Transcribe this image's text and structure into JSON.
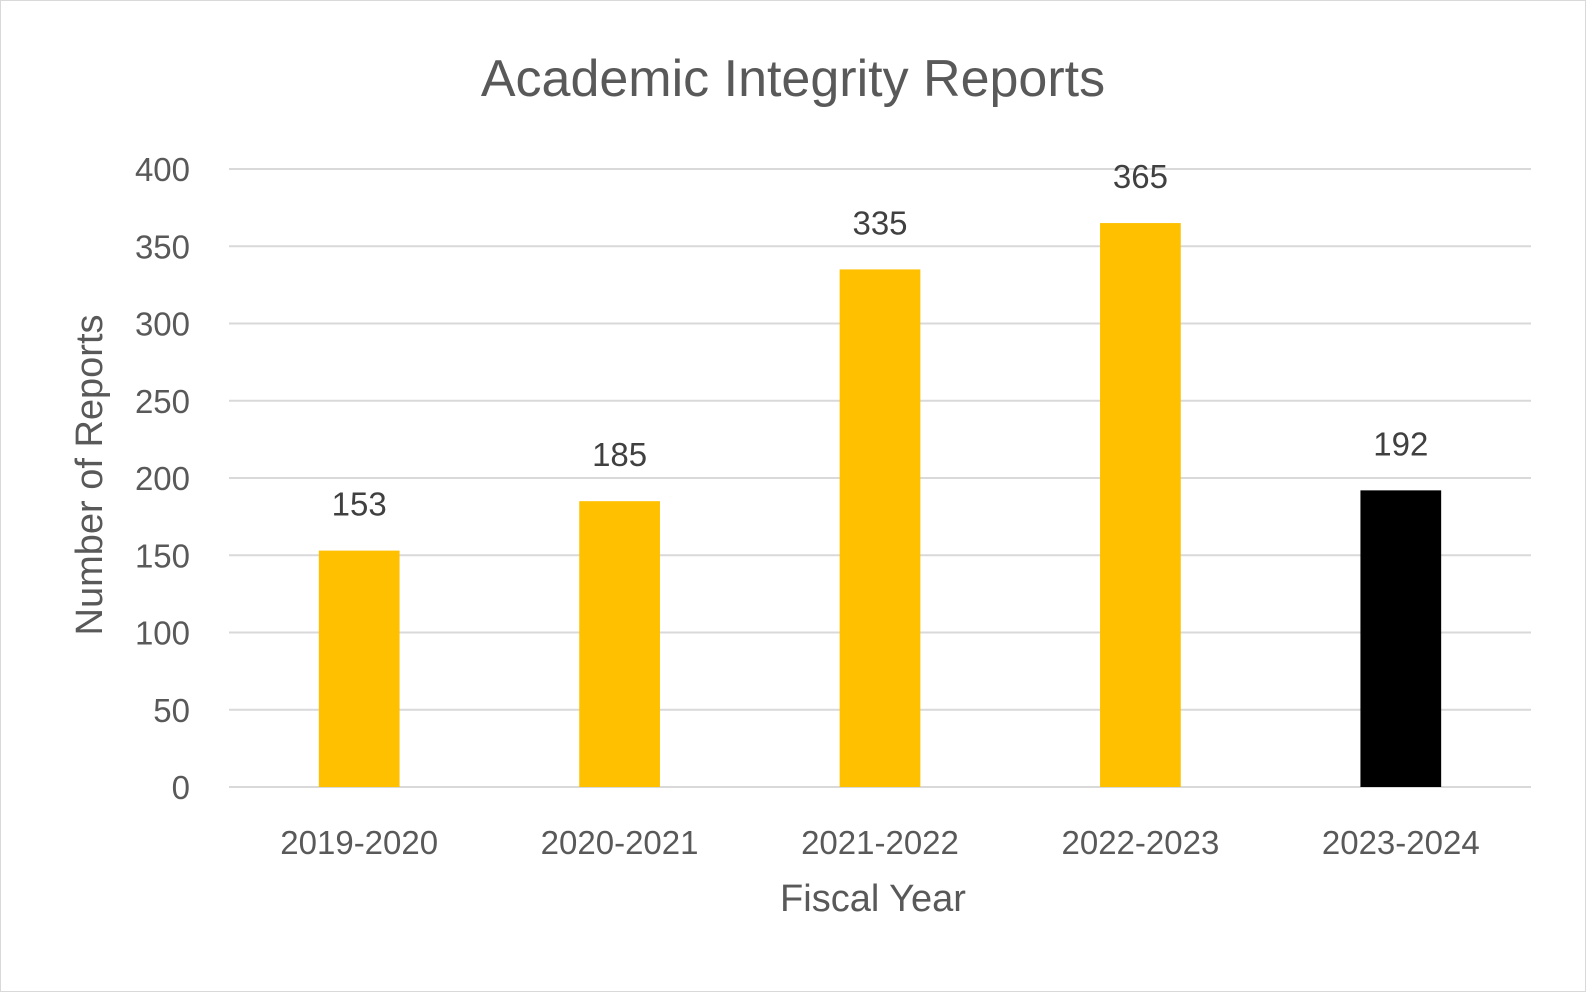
{
  "chart_data": {
    "type": "bar",
    "title": "Academic Integrity Reports",
    "xlabel": "Fiscal Year",
    "ylabel": "Number of Reports",
    "categories": [
      "2019-2020",
      "2020-2021",
      "2021-2022",
      "2022-2023",
      "2023-2024"
    ],
    "values": [
      153,
      185,
      335,
      365,
      192
    ],
    "data_labels": [
      "153",
      "185",
      "335",
      "365",
      "192"
    ],
    "bar_colors": [
      "#FFC000",
      "#FFC000",
      "#FFC000",
      "#FFC000",
      "#000000"
    ],
    "ylim": [
      0,
      400
    ],
    "yticks": [
      0,
      50,
      100,
      150,
      200,
      250,
      300,
      350,
      400
    ],
    "ytick_labels": [
      "0",
      "50",
      "100",
      "150",
      "200",
      "250",
      "300",
      "350",
      "400"
    ],
    "grid": true,
    "legend": "none"
  }
}
